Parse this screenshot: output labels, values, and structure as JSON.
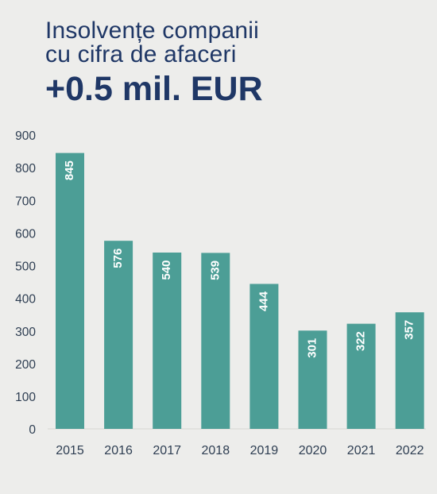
{
  "title": {
    "line1": "Insolvențe companii",
    "line2": "cu cifra de afaceri",
    "line3": "+0.5 mil. EUR"
  },
  "colors": {
    "bar": "#4c9e96",
    "title": "#1f3766",
    "background": "#ededeb"
  },
  "chart_data": {
    "type": "bar",
    "title": "Insolvențe companii cu cifra de afaceri +0.5 mil. EUR",
    "xlabel": "",
    "ylabel": "",
    "categories": [
      "2015",
      "2016",
      "2017",
      "2018",
      "2019",
      "2020",
      "2021",
      "2022"
    ],
    "values": [
      845,
      576,
      540,
      539,
      444,
      301,
      322,
      357
    ],
    "ylim": [
      0,
      900
    ],
    "yticks": [
      0,
      100,
      200,
      300,
      400,
      500,
      600,
      700,
      800,
      900
    ],
    "grid": false,
    "legend": "none",
    "data_labels": "inside-top-rotated"
  }
}
